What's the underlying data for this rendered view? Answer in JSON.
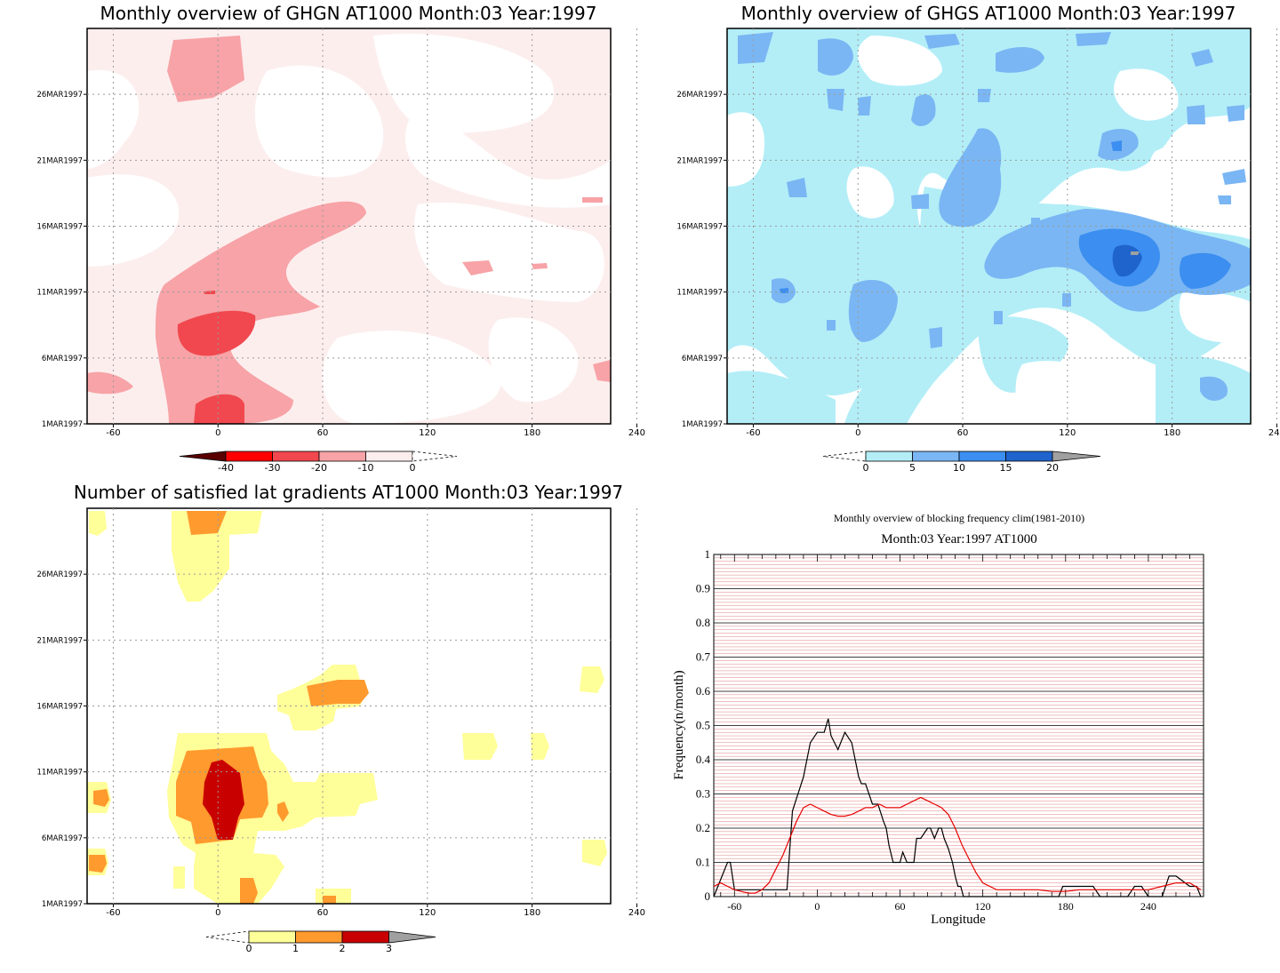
{
  "panels": {
    "ghgn": {
      "title": "Monthly overview of GHGN AT1000 Month:03 Year:1997",
      "ylabels": [
        "1MAR1997",
        "6MAR1997",
        "11MAR1997",
        "16MAR1997",
        "21MAR1997",
        "26MAR1997"
      ],
      "xlabels": [
        "-60",
        "0",
        "60",
        "120",
        "180",
        "240"
      ],
      "colorbar": {
        "labels": [
          "-40",
          "-30",
          "-20",
          "-10",
          "0"
        ],
        "colors": [
          "#5a0000",
          "#ff0000",
          "#f0484e",
          "#f7a3a7",
          "#fdeeee"
        ]
      }
    },
    "ghgs": {
      "title": "Monthly overview of GHGS AT1000 Month:03 Year:1997",
      "ylabels": [
        "1MAR1997",
        "6MAR1997",
        "11MAR1997",
        "16MAR1997",
        "21MAR1997",
        "26MAR1997"
      ],
      "xlabels": [
        "-60",
        "0",
        "60",
        "120",
        "180",
        "240"
      ],
      "colorbar": {
        "labels": [
          "0",
          "5",
          "10",
          "15",
          "20"
        ],
        "colors": [
          "#b3eef7",
          "#7ab6f3",
          "#3c8ef0",
          "#1f64cc",
          "#a0a0a0"
        ]
      }
    },
    "lat": {
      "title": "Number of satisfied lat gradients AT1000 Month:03 Year:1997",
      "ylabels": [
        "1MAR1997",
        "6MAR1997",
        "11MAR1997",
        "16MAR1997",
        "21MAR1997",
        "26MAR1997"
      ],
      "xlabels": [
        "-60",
        "0",
        "60",
        "120",
        "180",
        "240"
      ],
      "colorbar": {
        "labels": [
          "0",
          "1",
          "2",
          "3"
        ],
        "colors": [
          "#ffff99",
          "#ff9a2e",
          "#c90000",
          "#a0a0a0"
        ]
      }
    }
  },
  "chart_data": {
    "type": "line",
    "title": "Monthly overview of blocking frequency clim(1981-2010)",
    "subtitle": "Month:03 Year:1997  AT1000",
    "xlabel": "Longitude",
    "ylabel": "Frequency(n/month)",
    "xlim": [
      -75,
      280
    ],
    "ylim": [
      0,
      1
    ],
    "xticks": [
      "-60",
      "0",
      "60",
      "120",
      "180",
      "240"
    ],
    "yticks": [
      "0",
      "0.1",
      "0.2",
      "0.3",
      "0.4",
      "0.5",
      "0.6",
      "0.7",
      "0.8",
      "0.9",
      "1"
    ],
    "grid": true,
    "series": [
      {
        "color": "#000000",
        "x": [
          -75,
          -65,
          -63,
          -60,
          -22,
          -18,
          -10,
          -5,
          0,
          5,
          8,
          10,
          15,
          20,
          25,
          30,
          32,
          35,
          40,
          44,
          48,
          50,
          52,
          55,
          60,
          62,
          65,
          70,
          72,
          75,
          80,
          82,
          85,
          88,
          90,
          92,
          95,
          98,
          100,
          102,
          104,
          106,
          108,
          110,
          175,
          178,
          195,
          200,
          205,
          225,
          230,
          235,
          240,
          250,
          255,
          260,
          270,
          275,
          278
        ],
        "y": [
          0,
          0.1,
          0.1,
          0.02,
          0.02,
          0.25,
          0.35,
          0.45,
          0.48,
          0.48,
          0.52,
          0.47,
          0.43,
          0.48,
          0.45,
          0.35,
          0.33,
          0.33,
          0.27,
          0.27,
          0.22,
          0.2,
          0.15,
          0.1,
          0.1,
          0.13,
          0.1,
          0.1,
          0.17,
          0.17,
          0.2,
          0.2,
          0.17,
          0.2,
          0.2,
          0.17,
          0.14,
          0.1,
          0.06,
          0.03,
          0.03,
          0,
          0,
          0,
          0,
          0.03,
          0.03,
          0.03,
          0,
          0,
          0.03,
          0.03,
          0,
          0,
          0.06,
          0.06,
          0.03,
          0.03,
          0
        ]
      },
      {
        "color": "#e60000",
        "x": [
          -75,
          -70,
          -65,
          -60,
          -55,
          -50,
          -45,
          -40,
          -35,
          -30,
          -25,
          -20,
          -15,
          -10,
          -5,
          0,
          5,
          10,
          15,
          20,
          25,
          30,
          35,
          40,
          45,
          50,
          55,
          60,
          65,
          70,
          75,
          80,
          85,
          90,
          95,
          100,
          105,
          110,
          115,
          120,
          130,
          140,
          150,
          160,
          170,
          180,
          190,
          200,
          210,
          220,
          230,
          240,
          250,
          260,
          270,
          278
        ],
        "y": [
          0.03,
          0.04,
          0.03,
          0.02,
          0.015,
          0.01,
          0.01,
          0.02,
          0.04,
          0.08,
          0.12,
          0.17,
          0.22,
          0.26,
          0.27,
          0.26,
          0.25,
          0.24,
          0.235,
          0.235,
          0.24,
          0.25,
          0.26,
          0.26,
          0.27,
          0.26,
          0.26,
          0.26,
          0.27,
          0.28,
          0.29,
          0.28,
          0.27,
          0.26,
          0.24,
          0.2,
          0.15,
          0.11,
          0.07,
          0.04,
          0.02,
          0.02,
          0.02,
          0.02,
          0.015,
          0.015,
          0.02,
          0.02,
          0.02,
          0.02,
          0.02,
          0.02,
          0.03,
          0.04,
          0.04,
          0.02
        ]
      }
    ]
  }
}
